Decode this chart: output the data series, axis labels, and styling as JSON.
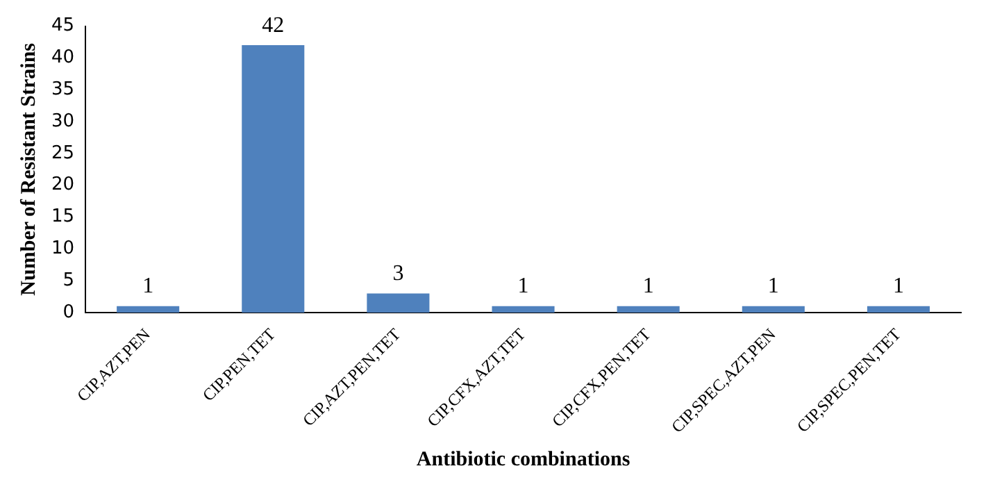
{
  "chart_data": {
    "type": "bar",
    "xlabel": "Antibiotic combinations",
    "ylabel": "Number of Resistant Strains",
    "categories": [
      "CIP,AZT,PEN",
      "CIP,PEN,TET",
      "CIP,AZT,PEN,TET",
      "CIP,CFX,AZT,TET",
      "CIP,CFX,PEN,TET",
      "CIP,SPEC,AZT,PEN",
      "CIP,SPEC,PEN,TET"
    ],
    "values": [
      1,
      42,
      3,
      1,
      1,
      1,
      1
    ],
    "color": "#4f81bd",
    "ylim": [
      0,
      45
    ],
    "yticks": [
      0,
      5,
      10,
      15,
      20,
      25,
      30,
      35,
      40,
      45
    ],
    "grid": false,
    "legend": false,
    "data_labels": true
  }
}
